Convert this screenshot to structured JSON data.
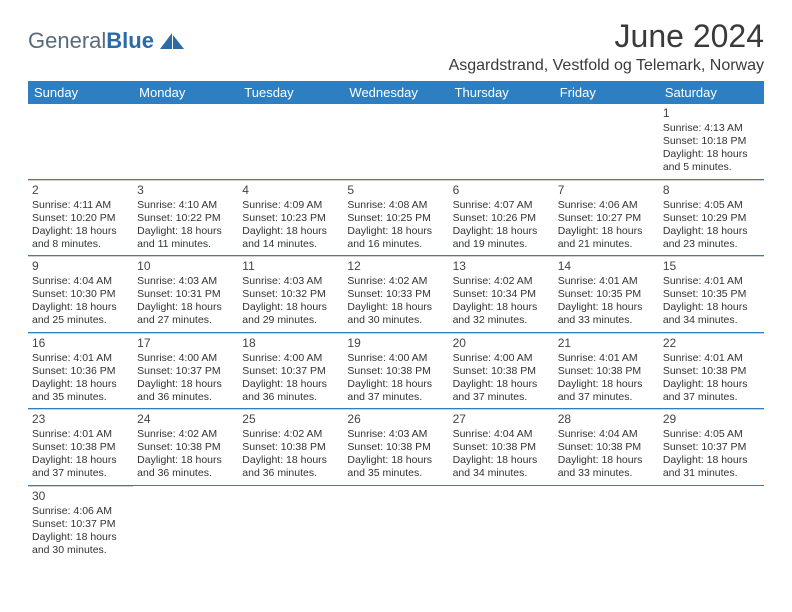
{
  "logo": {
    "text1": "General",
    "text2": "Blue"
  },
  "title": "June 2024",
  "subtitle": "Asgardstrand, Vestfold og Telemark, Norway",
  "colors": {
    "header_bg": "#2d7fc1",
    "header_text": "#ffffff",
    "row_border": "#2d7fc1",
    "cell_border": "#d0d0d0",
    "title_color": "#3a3a3a",
    "logo_gray": "#5a6a7a",
    "logo_blue": "#2d6aa8"
  },
  "day_headers": [
    "Sunday",
    "Monday",
    "Tuesday",
    "Wednesday",
    "Thursday",
    "Friday",
    "Saturday"
  ],
  "weeks": [
    [
      null,
      null,
      null,
      null,
      null,
      null,
      {
        "n": "1",
        "sr": "Sunrise: 4:13 AM",
        "ss": "Sunset: 10:18 PM",
        "d1": "Daylight: 18 hours",
        "d2": "and 5 minutes."
      }
    ],
    [
      {
        "n": "2",
        "sr": "Sunrise: 4:11 AM",
        "ss": "Sunset: 10:20 PM",
        "d1": "Daylight: 18 hours",
        "d2": "and 8 minutes."
      },
      {
        "n": "3",
        "sr": "Sunrise: 4:10 AM",
        "ss": "Sunset: 10:22 PM",
        "d1": "Daylight: 18 hours",
        "d2": "and 11 minutes."
      },
      {
        "n": "4",
        "sr": "Sunrise: 4:09 AM",
        "ss": "Sunset: 10:23 PM",
        "d1": "Daylight: 18 hours",
        "d2": "and 14 minutes."
      },
      {
        "n": "5",
        "sr": "Sunrise: 4:08 AM",
        "ss": "Sunset: 10:25 PM",
        "d1": "Daylight: 18 hours",
        "d2": "and 16 minutes."
      },
      {
        "n": "6",
        "sr": "Sunrise: 4:07 AM",
        "ss": "Sunset: 10:26 PM",
        "d1": "Daylight: 18 hours",
        "d2": "and 19 minutes."
      },
      {
        "n": "7",
        "sr": "Sunrise: 4:06 AM",
        "ss": "Sunset: 10:27 PM",
        "d1": "Daylight: 18 hours",
        "d2": "and 21 minutes."
      },
      {
        "n": "8",
        "sr": "Sunrise: 4:05 AM",
        "ss": "Sunset: 10:29 PM",
        "d1": "Daylight: 18 hours",
        "d2": "and 23 minutes."
      }
    ],
    [
      {
        "n": "9",
        "sr": "Sunrise: 4:04 AM",
        "ss": "Sunset: 10:30 PM",
        "d1": "Daylight: 18 hours",
        "d2": "and 25 minutes."
      },
      {
        "n": "10",
        "sr": "Sunrise: 4:03 AM",
        "ss": "Sunset: 10:31 PM",
        "d1": "Daylight: 18 hours",
        "d2": "and 27 minutes."
      },
      {
        "n": "11",
        "sr": "Sunrise: 4:03 AM",
        "ss": "Sunset: 10:32 PM",
        "d1": "Daylight: 18 hours",
        "d2": "and 29 minutes."
      },
      {
        "n": "12",
        "sr": "Sunrise: 4:02 AM",
        "ss": "Sunset: 10:33 PM",
        "d1": "Daylight: 18 hours",
        "d2": "and 30 minutes."
      },
      {
        "n": "13",
        "sr": "Sunrise: 4:02 AM",
        "ss": "Sunset: 10:34 PM",
        "d1": "Daylight: 18 hours",
        "d2": "and 32 minutes."
      },
      {
        "n": "14",
        "sr": "Sunrise: 4:01 AM",
        "ss": "Sunset: 10:35 PM",
        "d1": "Daylight: 18 hours",
        "d2": "and 33 minutes."
      },
      {
        "n": "15",
        "sr": "Sunrise: 4:01 AM",
        "ss": "Sunset: 10:35 PM",
        "d1": "Daylight: 18 hours",
        "d2": "and 34 minutes."
      }
    ],
    [
      {
        "n": "16",
        "sr": "Sunrise: 4:01 AM",
        "ss": "Sunset: 10:36 PM",
        "d1": "Daylight: 18 hours",
        "d2": "and 35 minutes."
      },
      {
        "n": "17",
        "sr": "Sunrise: 4:00 AM",
        "ss": "Sunset: 10:37 PM",
        "d1": "Daylight: 18 hours",
        "d2": "and 36 minutes."
      },
      {
        "n": "18",
        "sr": "Sunrise: 4:00 AM",
        "ss": "Sunset: 10:37 PM",
        "d1": "Daylight: 18 hours",
        "d2": "and 36 minutes."
      },
      {
        "n": "19",
        "sr": "Sunrise: 4:00 AM",
        "ss": "Sunset: 10:38 PM",
        "d1": "Daylight: 18 hours",
        "d2": "and 37 minutes."
      },
      {
        "n": "20",
        "sr": "Sunrise: 4:00 AM",
        "ss": "Sunset: 10:38 PM",
        "d1": "Daylight: 18 hours",
        "d2": "and 37 minutes."
      },
      {
        "n": "21",
        "sr": "Sunrise: 4:01 AM",
        "ss": "Sunset: 10:38 PM",
        "d1": "Daylight: 18 hours",
        "d2": "and 37 minutes."
      },
      {
        "n": "22",
        "sr": "Sunrise: 4:01 AM",
        "ss": "Sunset: 10:38 PM",
        "d1": "Daylight: 18 hours",
        "d2": "and 37 minutes."
      }
    ],
    [
      {
        "n": "23",
        "sr": "Sunrise: 4:01 AM",
        "ss": "Sunset: 10:38 PM",
        "d1": "Daylight: 18 hours",
        "d2": "and 37 minutes."
      },
      {
        "n": "24",
        "sr": "Sunrise: 4:02 AM",
        "ss": "Sunset: 10:38 PM",
        "d1": "Daylight: 18 hours",
        "d2": "and 36 minutes."
      },
      {
        "n": "25",
        "sr": "Sunrise: 4:02 AM",
        "ss": "Sunset: 10:38 PM",
        "d1": "Daylight: 18 hours",
        "d2": "and 36 minutes."
      },
      {
        "n": "26",
        "sr": "Sunrise: 4:03 AM",
        "ss": "Sunset: 10:38 PM",
        "d1": "Daylight: 18 hours",
        "d2": "and 35 minutes."
      },
      {
        "n": "27",
        "sr": "Sunrise: 4:04 AM",
        "ss": "Sunset: 10:38 PM",
        "d1": "Daylight: 18 hours",
        "d2": "and 34 minutes."
      },
      {
        "n": "28",
        "sr": "Sunrise: 4:04 AM",
        "ss": "Sunset: 10:38 PM",
        "d1": "Daylight: 18 hours",
        "d2": "and 33 minutes."
      },
      {
        "n": "29",
        "sr": "Sunrise: 4:05 AM",
        "ss": "Sunset: 10:37 PM",
        "d1": "Daylight: 18 hours",
        "d2": "and 31 minutes."
      }
    ],
    [
      {
        "n": "30",
        "sr": "Sunrise: 4:06 AM",
        "ss": "Sunset: 10:37 PM",
        "d1": "Daylight: 18 hours",
        "d2": "and 30 minutes."
      },
      null,
      null,
      null,
      null,
      null,
      null
    ]
  ]
}
